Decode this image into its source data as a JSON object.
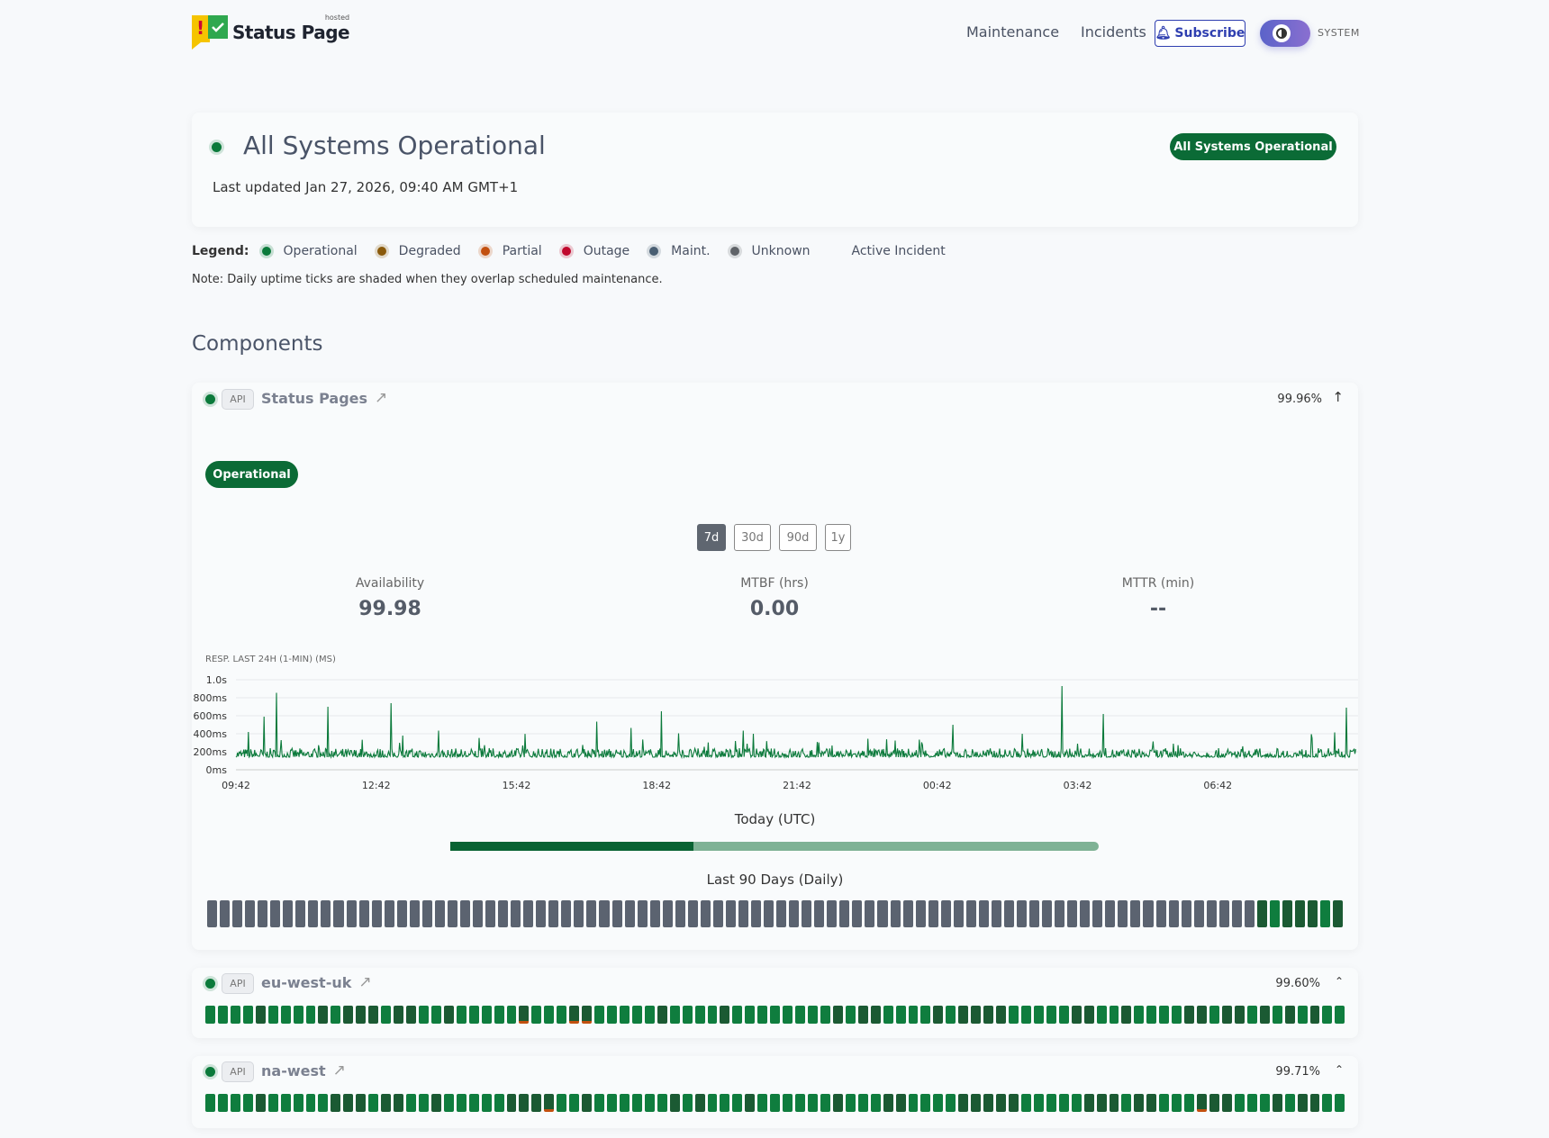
{
  "header": {
    "logo_text": "Status Page",
    "logo_hosted": "hosted",
    "nav": [
      {
        "label": "Maintenance"
      },
      {
        "label": "Incidents"
      }
    ],
    "subscribe_label": "Subscribe",
    "theme_label": "SYSTEM"
  },
  "hero": {
    "title": "All Systems Operational",
    "last_updated": "Last updated Jan 27, 2026, 09:40 AM GMT+1",
    "badge": "All Systems Operational"
  },
  "legend": {
    "label": "Legend:",
    "items": [
      {
        "label": "Operational",
        "color": "#0b7a3b"
      },
      {
        "label": "Degraded",
        "color": "#8a5a0b"
      },
      {
        "label": "Partial",
        "color": "#c2500f"
      },
      {
        "label": "Outage",
        "color": "#c0082d"
      },
      {
        "label": "Maint.",
        "color": "#4a5f73"
      },
      {
        "label": "Unknown",
        "color": "#5f6368"
      },
      {
        "label": "Active Incident",
        "color": ""
      }
    ],
    "note": "Note: Daily uptime ticks are shaded when they overlap scheduled maintenance."
  },
  "components_title": "Components",
  "components": [
    {
      "tag": "API",
      "name": "Status Pages",
      "uptime": "99.96%",
      "expanded": true,
      "status": "Operational",
      "ranges": [
        "7d",
        "30d",
        "90d",
        "1y"
      ],
      "active_range": "7d",
      "metrics": [
        {
          "label": "Availability",
          "value": "99.98"
        },
        {
          "label": "MTBF (hrs)",
          "value": "0.00"
        },
        {
          "label": "MTTR (min)",
          "value": "--"
        }
      ],
      "today_label": "Today (UTC)",
      "today_progress": 0.375,
      "days_label": "Last 90 Days (Daily)",
      "days": "uuuuuuuuuuuuuuuuuuuuuuuuuuuuuuuuuuuuuuuuuuuuuuuuuuuuuuuuuuuuuuuuuuuuuuuuuuuuuuuuuuudodddod"
    },
    {
      "tag": "API",
      "name": "eu-west-uk",
      "uptime": "99.60%",
      "expanded": false,
      "days": "oooodoooododddoddoodoooooporrppooooodoooodoooooooododdoooododdddoooooddoodooooddoddodododoo"
    },
    {
      "tag": "API",
      "name": "na-west",
      "uptime": "99.71%",
      "expanded": false,
      "days": "oooodooooodddoddoodooooodddpoodoooooododooodoooooodoooddoooodddddooooodddoddooopddooododdoo"
    }
  ],
  "chart_data": {
    "type": "line",
    "title": "RESP. LAST 24H (1-MIN) (MS)",
    "y_ticks": [
      "0ms",
      "200ms",
      "400ms",
      "600ms",
      "800ms",
      "1.0s"
    ],
    "ylim": [
      0,
      1000
    ],
    "x_ticks": [
      "09:42",
      "12:42",
      "15:42",
      "18:42",
      "21:42",
      "00:42",
      "03:42",
      "06:42"
    ],
    "x_range": [
      "09:42",
      "09:40"
    ],
    "baseline_ms": [
      140,
      240
    ],
    "color": "#0b7a3b",
    "spikes": [
      [
        "09:58",
        420
      ],
      [
        "10:18",
        590
      ],
      [
        "10:34",
        855
      ],
      [
        "11:40",
        700
      ],
      [
        "13:01",
        740
      ],
      [
        "14:02",
        435
      ],
      [
        "17:25",
        535
      ],
      [
        "18:09",
        465
      ],
      [
        "18:48",
        650
      ],
      [
        "19:10",
        405
      ],
      [
        "20:33",
        435
      ],
      [
        "20:46",
        400
      ],
      [
        "23:13",
        345
      ],
      [
        "00:19",
        335
      ],
      [
        "01:02",
        500
      ],
      [
        "02:31",
        400
      ],
      [
        "03:22",
        930
      ],
      [
        "04:15",
        620
      ],
      [
        "05:19",
        315
      ],
      [
        "09:12",
        415
      ],
      [
        "09:27",
        690
      ]
    ],
    "grid": true
  },
  "colors": {
    "operational": "#0f7d3e",
    "operational_dark": "#1b5a33",
    "unknown": "#5b6370",
    "partial": "#c2500f",
    "today_done": "#0a6333",
    "today_rest": "#7fb295"
  }
}
